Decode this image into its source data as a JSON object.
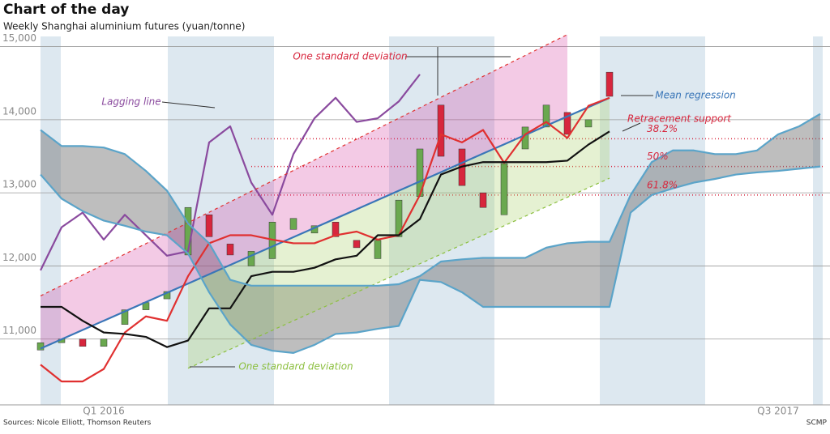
{
  "title": "Chart of the day",
  "subtitle": "Weekly Shanghai aluminium futures (yuan/tonne)",
  "source": "Sources: Nicole Elliott, Thomson Reuters",
  "credit": "SCMP",
  "chart_data": {
    "type": "line",
    "categories": [
      null,
      null,
      null,
      "Q1 2016",
      null,
      null,
      null,
      null,
      null,
      null,
      null,
      null,
      null,
      null,
      null,
      null,
      null,
      null,
      null,
      null,
      null,
      null,
      null,
      null,
      null,
      null,
      null,
      null,
      null,
      null,
      null,
      null,
      null,
      null,
      null,
      "Q3 2017",
      null,
      null
    ],
    "ylim": [
      10100,
      15250
    ],
    "yticks": [
      {
        "value": 11000,
        "label": "11,000"
      },
      {
        "value": 12000,
        "label": "12,000"
      },
      {
        "value": 13000,
        "label": "13,000"
      },
      {
        "value": 14000,
        "label": "14,000"
      },
      {
        "value": 15000,
        "label": "15,000"
      }
    ],
    "grid": true,
    "series": [
      {
        "name": "Lagging line",
        "color": "#8a4a9e",
        "values": [
          11940,
          12530,
          12730,
          12360,
          12700,
          12420,
          12140,
          12200,
          13690,
          13910,
          13140,
          12700,
          13530,
          14020,
          14300,
          13970,
          14020,
          14250,
          14620,
          null,
          null,
          null,
          null,
          null,
          null,
          null,
          null,
          null,
          null,
          null,
          null,
          null,
          null,
          null,
          null,
          null,
          null,
          null
        ]
      },
      {
        "name": "Mean regression",
        "color": "#3a76b8",
        "values": [
          10870,
          10997,
          11124,
          11251,
          11378,
          11505,
          11632,
          11759,
          11886,
          12013,
          12140,
          12267,
          12394,
          12521,
          12648,
          12775,
          12902,
          13029,
          13156,
          13283,
          13410,
          13537,
          13664,
          13791,
          13918,
          14045,
          14172,
          14299,
          null,
          null,
          null,
          null,
          null,
          null,
          null,
          null,
          null,
          null
        ]
      },
      {
        "name": "One standard deviation",
        "color": "#e03030",
        "dashed": true,
        "values": [
          11590,
          11733,
          11876,
          12019,
          12162,
          12305,
          12448,
          12591,
          12734,
          12877,
          13020,
          13163,
          13306,
          13449,
          13592,
          13735,
          13878,
          14021,
          14164,
          14307,
          14450,
          14593,
          14736,
          14879,
          15022,
          15165,
          null,
          null,
          null,
          null,
          null,
          null,
          null,
          null,
          null,
          null,
          null,
          null
        ]
      },
      {
        "name": "One standard deviation",
        "color": "#8cbf3f",
        "dashed": true,
        "values": [
          null,
          null,
          null,
          null,
          null,
          null,
          null,
          10600,
          10730,
          10860,
          10990,
          11120,
          11250,
          11380,
          11510,
          11640,
          11770,
          11900,
          12030,
          12160,
          12290,
          12420,
          12550,
          12680,
          12810,
          12940,
          13070,
          13200,
          null,
          null,
          null,
          null,
          null,
          null,
          null,
          null,
          null,
          null
        ]
      },
      {
        "color": "#e03030",
        "values": [
          10650,
          10420,
          10420,
          10590,
          11090,
          11310,
          11250,
          11860,
          12310,
          12420,
          12420,
          12360,
          12310,
          12310,
          12420,
          12470,
          12360,
          12420,
          12970,
          13800,
          13690,
          13860,
          13410,
          13800,
          13970,
          13750,
          14190,
          14300,
          null,
          null,
          null,
          null,
          null,
          null,
          null,
          null,
          null,
          null
        ]
      },
      {
        "color": "#111111",
        "values": [
          11440,
          11440,
          11250,
          11090,
          11070,
          11030,
          10890,
          10980,
          11420,
          11420,
          11860,
          11920,
          11920,
          11975,
          12090,
          12140,
          12420,
          12420,
          12640,
          13250,
          13360,
          13420,
          13420,
          13420,
          13420,
          13440,
          13660,
          13840,
          null,
          null,
          null,
          null,
          null,
          null,
          null,
          null,
          null,
          null
        ]
      },
      {
        "color": "#5ba4c9",
        "cloud": true,
        "values": [
          13860,
          13640,
          13640,
          13620,
          13530,
          13300,
          13030,
          12580,
          12310,
          11810,
          11730,
          11730,
          11730,
          11730,
          11730,
          11730,
          11730,
          11750,
          11860,
          12060,
          12090,
          12110,
          12110,
          12110,
          12250,
          12310,
          12330,
          12330,
          12970,
          13420,
          13580,
          13580,
          13530,
          13530,
          13580,
          13800,
          13910,
          14080
        ]
      },
      {
        "color": "#5ba4c9",
        "cloud": true,
        "values": [
          13250,
          12920,
          12750,
          12620,
          12550,
          12470,
          12420,
          12170,
          11640,
          11200,
          10920,
          10840,
          10810,
          10920,
          11070,
          11090,
          11140,
          11180,
          11810,
          11780,
          11640,
          11440,
          11440,
          11440,
          11440,
          11440,
          11440,
          11440,
          12730,
          12970,
          13060,
          13140,
          13190,
          13250,
          13280,
          13300,
          13330,
          13360
        ]
      }
    ],
    "candles": {
      "up_color": "#6aa84f",
      "down_color": "#d7263d",
      "open": [
        10850,
        10950,
        11000,
        10900,
        11200,
        11400,
        11550,
        12150,
        12700,
        12300,
        12000,
        12100,
        12500,
        12450,
        12600,
        12350,
        12100,
        12400,
        12950,
        14200,
        13600,
        13000,
        12700,
        13600,
        13900,
        14100,
        13900,
        14650
      ],
      "close": [
        10950,
        11000,
        10900,
        11000,
        11400,
        11500,
        11650,
        12800,
        12400,
        12150,
        12200,
        12600,
        12650,
        12550,
        12400,
        12250,
        12350,
        12900,
        13600,
        13500,
        13100,
        12800,
        13400,
        13900,
        14200,
        13800,
        14000,
        14320
      ]
    },
    "retracement": {
      "color": "#d7263d",
      "levels": [
        {
          "label": "38.2%",
          "value": 13740
        },
        {
          "label": "50%",
          "value": 13360
        },
        {
          "label": "61.8%",
          "value": 12970
        }
      ]
    },
    "annotations": [
      "One standard deviation",
      "Lagging line",
      "Mean regression",
      "Retracement support",
      "One standard deviation"
    ]
  }
}
